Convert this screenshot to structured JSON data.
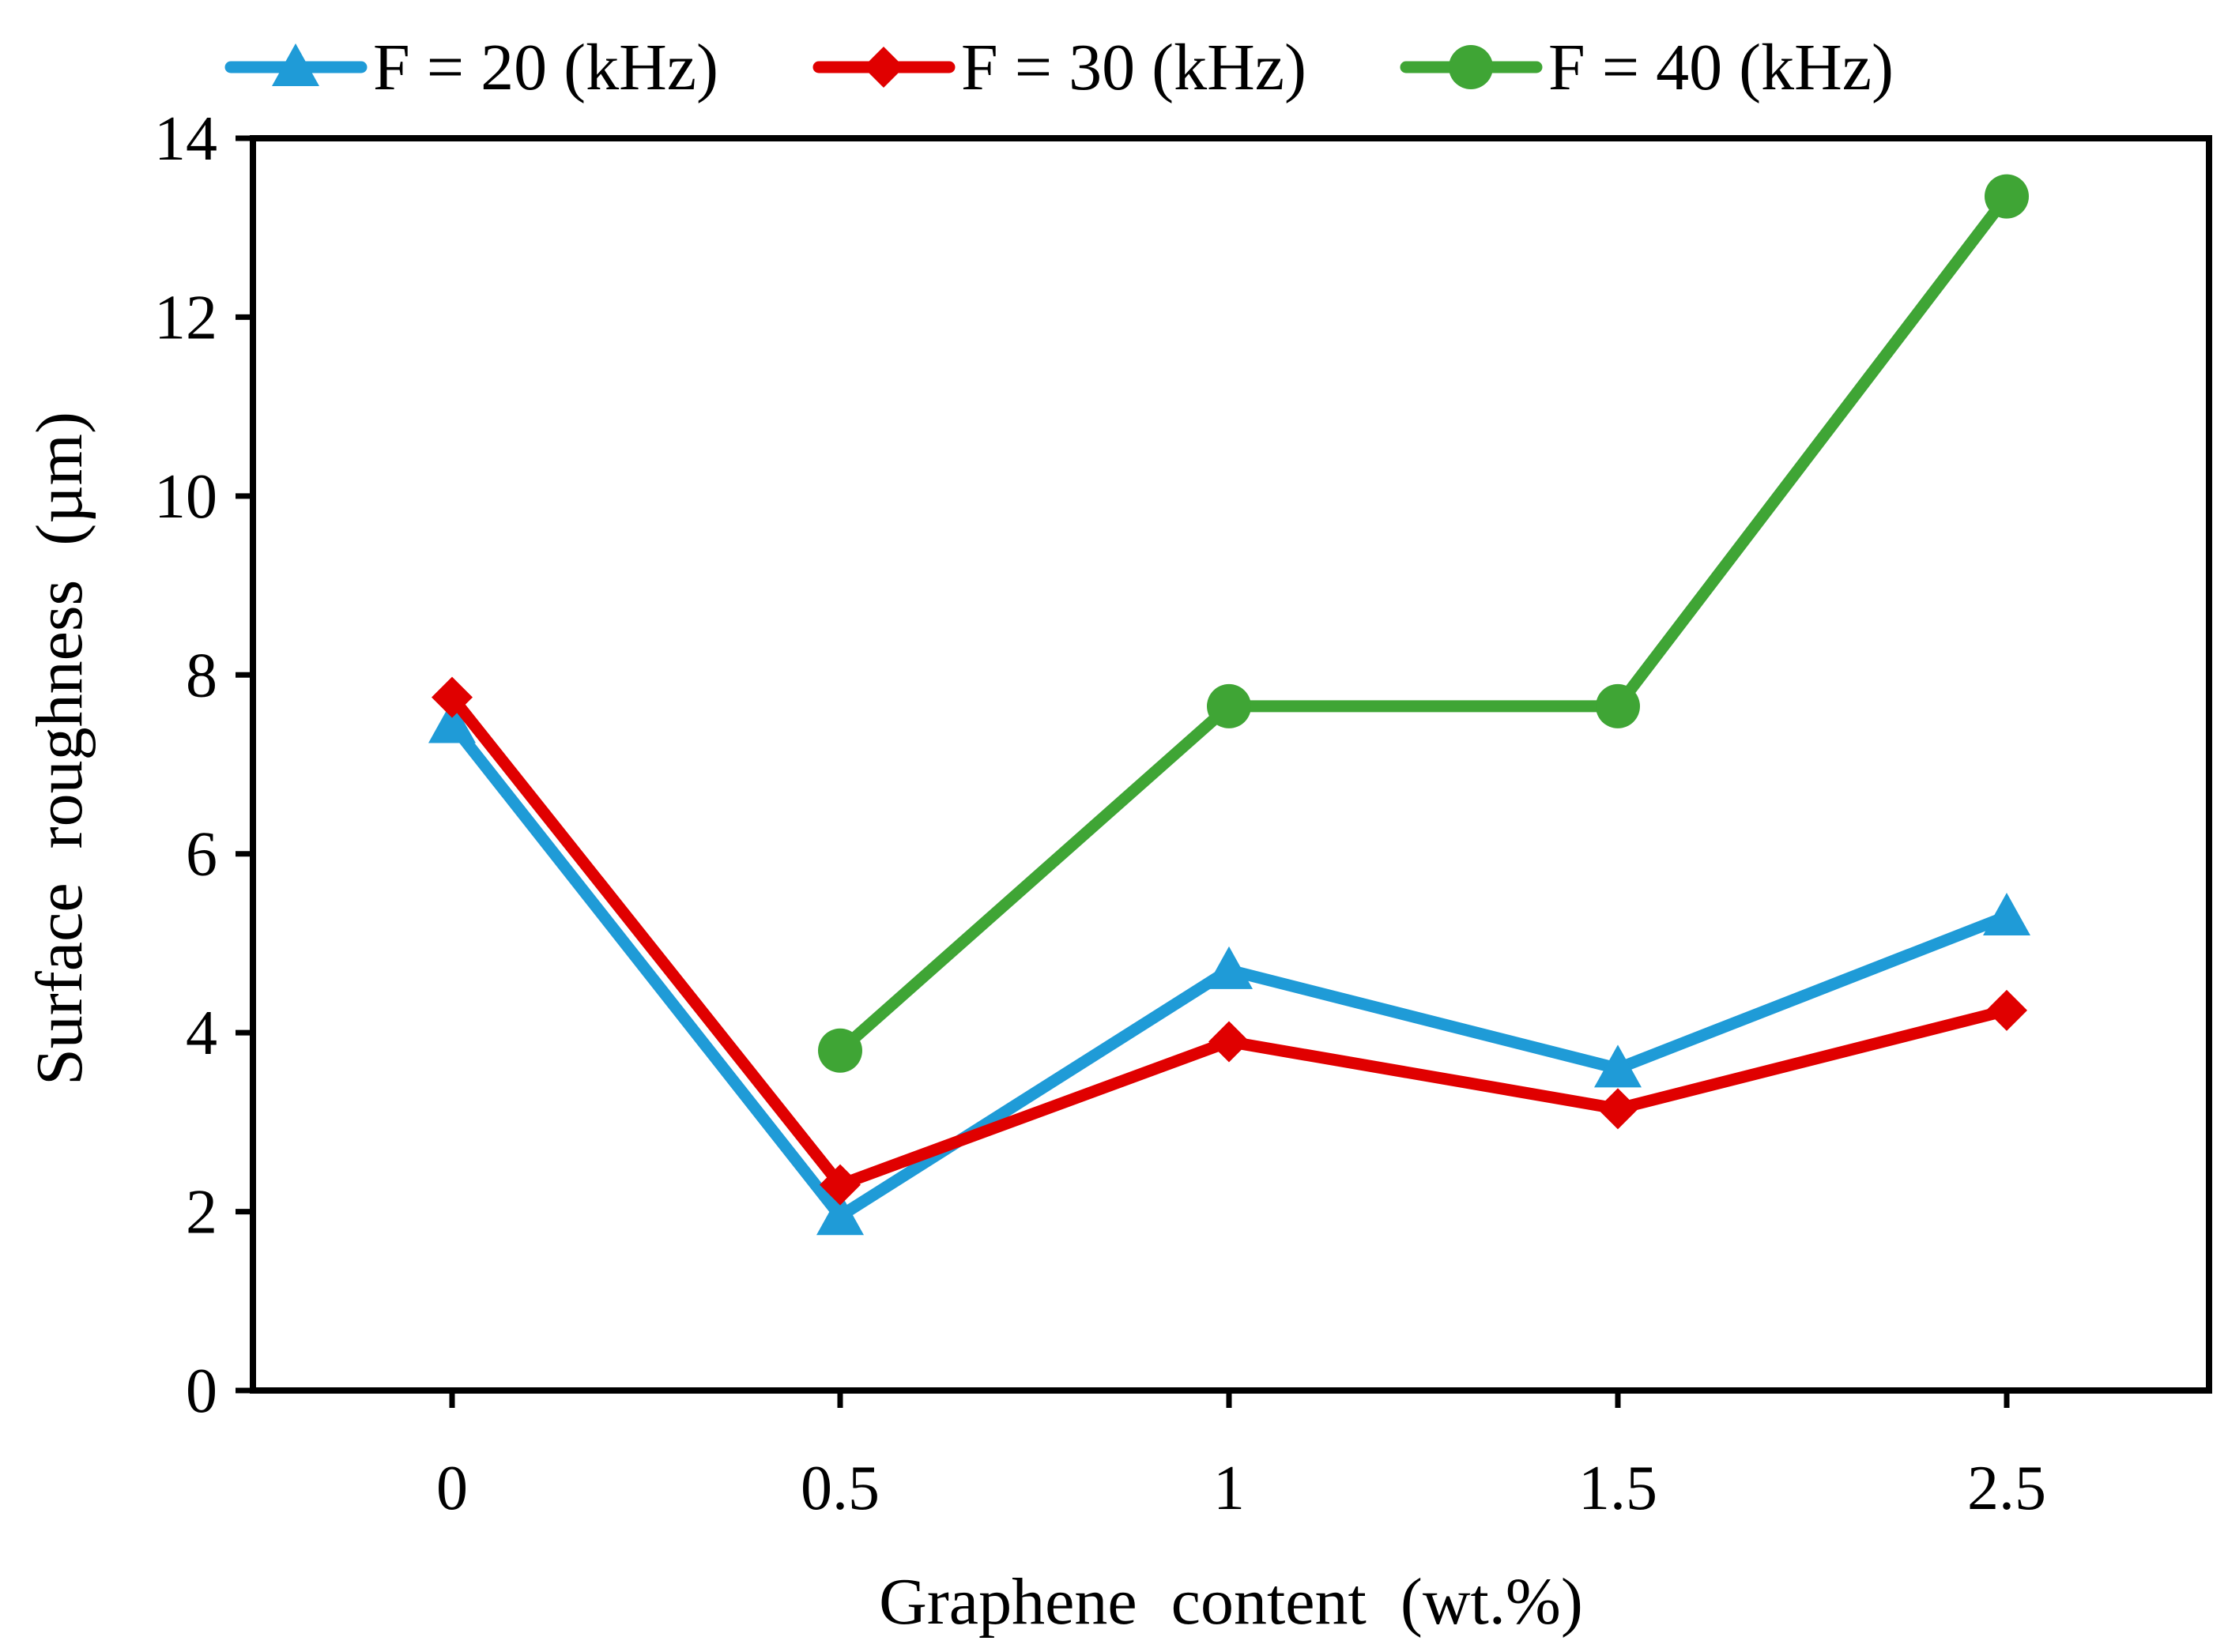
{
  "chart_data": {
    "type": "line",
    "title": "",
    "xlabel": "Graphene content (wt.%)",
    "ylabel": "Surface roughness (µm)",
    "categories": [
      "0",
      "0.5",
      "1",
      "1.5",
      "2.5"
    ],
    "ylim": [
      0,
      14
    ],
    "yticks": [
      "0",
      "2",
      "4",
      "6",
      "8",
      "10",
      "12",
      "14"
    ],
    "legend_position": "top",
    "grid": false,
    "series": [
      {
        "name": "F = 20 (kHz)",
        "color": "#1f9bd7",
        "marker": "triangle",
        "values": [
          7.45,
          1.95,
          4.7,
          3.6,
          5.3
        ]
      },
      {
        "name": "F = 30 (kHz)",
        "color": "#e00000",
        "marker": "diamond",
        "values": [
          7.75,
          2.3,
          3.9,
          3.15,
          4.25
        ]
      },
      {
        "name": "F = 40 (kHz)",
        "color": "#3fa535",
        "marker": "circle",
        "values": [
          null,
          3.8,
          7.65,
          7.65,
          13.35
        ]
      }
    ]
  }
}
